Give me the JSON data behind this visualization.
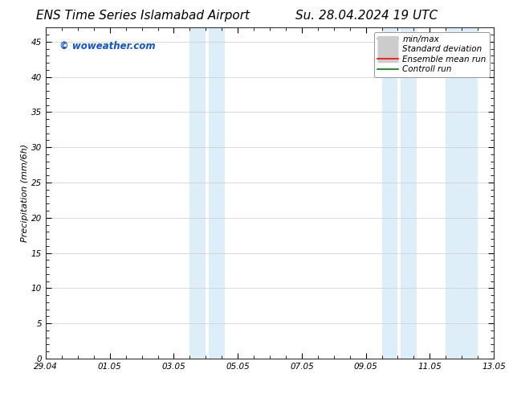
{
  "title_left": "ENS Time Series Islamabad Airport",
  "title_right": "Su. 28.04.2024 19 UTC",
  "ylabel": "Precipitation (mm/6h)",
  "ylim": [
    0,
    47
  ],
  "yticks": [
    0,
    5,
    10,
    15,
    20,
    25,
    30,
    35,
    40,
    45
  ],
  "xlim": [
    0,
    14
  ],
  "xtick_labels": [
    "29.04",
    "01.05",
    "03.05",
    "05.05",
    "07.05",
    "09.05",
    "11.05",
    "13.05"
  ],
  "xtick_positions": [
    0,
    2,
    4,
    6,
    8,
    10,
    12,
    14
  ],
  "shaded_bands": [
    {
      "x_start": 4.5,
      "x_end": 5.5,
      "color": "#ddeef8"
    },
    {
      "x_start": 5.5,
      "x_end": 6.5,
      "color": "#ddeef8"
    },
    {
      "x_start": 10.5,
      "x_end": 11.5,
      "color": "#ddeef8"
    },
    {
      "x_start": 11.5,
      "x_end": 12.5,
      "color": "#ddeef8"
    },
    {
      "x_start": 12.5,
      "x_end": 13.5,
      "color": "#ddeef8"
    }
  ],
  "legend_items": [
    {
      "label": "min/max",
      "color": "#aaaaaa",
      "lw": 1.2
    },
    {
      "label": "Standard deviation",
      "color": "#cccccc",
      "lw": 6
    },
    {
      "label": "Ensemble mean run",
      "color": "#ff0000",
      "lw": 1.2
    },
    {
      "label": "Controll run",
      "color": "#008000",
      "lw": 1.2
    }
  ],
  "watermark": "© woweather.com",
  "watermark_color": "#1155cc",
  "background_color": "#ffffff",
  "grid_color": "#cccccc",
  "title_fontsize": 11,
  "ylabel_fontsize": 8,
  "tick_fontsize": 7.5,
  "legend_fontsize": 7.5
}
